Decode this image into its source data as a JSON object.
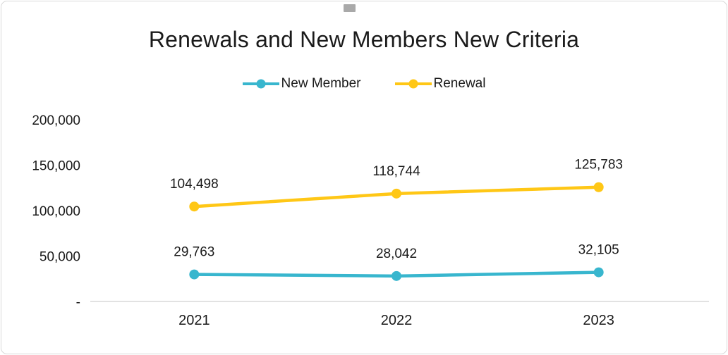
{
  "window": {
    "background": "#ffffff",
    "border_color": "#d9d9d9"
  },
  "chart_data": {
    "type": "line",
    "title": "Renewals and New Members New Criteria",
    "categories": [
      "2021",
      "2022",
      "2023"
    ],
    "series": [
      {
        "name": "New Member",
        "color": "#38b6ce",
        "values": [
          29763,
          28042,
          32105
        ],
        "value_labels": [
          "29,763",
          "28,042",
          "32,105"
        ]
      },
      {
        "name": "Renewal",
        "color": "#ffc716",
        "values": [
          104498,
          118744,
          125783
        ],
        "value_labels": [
          "104,498",
          "118,744",
          "125,783"
        ]
      }
    ],
    "xlabel": "",
    "ylabel": "",
    "ylim": [
      0,
      200000
    ],
    "y_ticks": [
      {
        "value": 200000,
        "label": "200,000"
      },
      {
        "value": 150000,
        "label": "150,000"
      },
      {
        "value": 100000,
        "label": "100,000"
      },
      {
        "value": 50000,
        "label": "50,000"
      },
      {
        "value": 0,
        "label": "-"
      }
    ],
    "legend_position": "top",
    "grid": false,
    "axis_color": "#d9d9d9",
    "label_color": "#1a1a1a"
  }
}
